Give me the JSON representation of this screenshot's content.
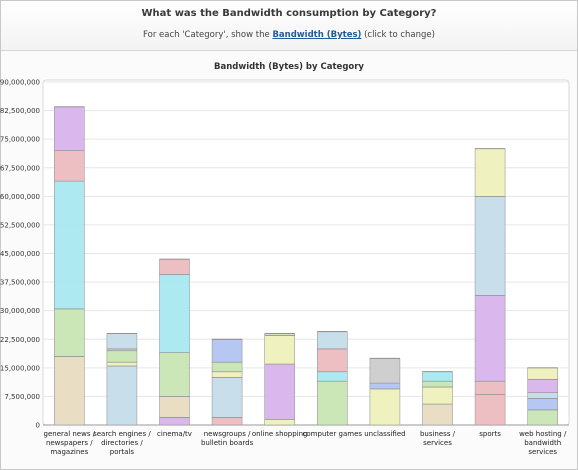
{
  "header": {
    "question": "What was the Bandwidth consumption by Category?",
    "sub_prefix": "For each 'Category', show the",
    "metric_label": "Bandwidth (Bytes)",
    "sub_suffix": "(click to change)"
  },
  "colors": {
    "tan": "#e8dcc0",
    "green": "#c8e6b4",
    "cyan": "#a9e8ef",
    "pink": "#ecbcc0",
    "lavender": "#d8b4ec",
    "lightblue": "#c6dcea",
    "lightyellow": "#eef0bc",
    "blue": "#b2c4f2",
    "gray": "#cccccc"
  },
  "chart_data": {
    "type": "bar",
    "stacked": true,
    "title": "Bandwidth (Bytes) by Category",
    "ylim": [
      0,
      90000000
    ],
    "yticks": [
      "0",
      "7,500,000",
      "15,000,000",
      "22,500,000",
      "30,000,000",
      "37,500,000",
      "45,000,000",
      "52,500,000",
      "60,000,000",
      "67,500,000",
      "75,000,000",
      "82,500,000",
      "90,000,000"
    ],
    "categories": [
      [
        "general news /",
        "newspapers /",
        "magazines"
      ],
      [
        "search engines /",
        "directories /",
        "portals"
      ],
      [
        "cinema/tv"
      ],
      [
        "newsgroups /",
        "bulletin boards"
      ],
      [
        "online shopping"
      ],
      [
        "computer games"
      ],
      [
        "unclassified"
      ],
      [
        "business /",
        "services"
      ],
      [
        "sports"
      ],
      [
        "web hosting /",
        "bandwidth",
        "services"
      ]
    ],
    "stacks": [
      [
        {
          "value": 18000000,
          "color": "tan"
        },
        {
          "value": 12500000,
          "color": "green"
        },
        {
          "value": 33500000,
          "color": "cyan"
        },
        {
          "value": 8000000,
          "color": "pink"
        },
        {
          "value": 11500000,
          "color": "lavender"
        }
      ],
      [
        {
          "value": 15500000,
          "color": "lightblue"
        },
        {
          "value": 1000000,
          "color": "lightyellow"
        },
        {
          "value": 3000000,
          "color": "green"
        },
        {
          "value": 500000,
          "color": "gray"
        },
        {
          "value": 4000000,
          "color": "lightblue"
        }
      ],
      [
        {
          "value": 2000000,
          "color": "lavender"
        },
        {
          "value": 5500000,
          "color": "tan"
        },
        {
          "value": 11500000,
          "color": "green"
        },
        {
          "value": 20500000,
          "color": "cyan"
        },
        {
          "value": 4000000,
          "color": "pink"
        }
      ],
      [
        {
          "value": 2000000,
          "color": "pink"
        },
        {
          "value": 10500000,
          "color": "lightblue"
        },
        {
          "value": 1500000,
          "color": "lightyellow"
        },
        {
          "value": 2500000,
          "color": "green"
        },
        {
          "value": 6000000,
          "color": "blue"
        }
      ],
      [
        {
          "value": 1500000,
          "color": "lightyellow"
        },
        {
          "value": 14500000,
          "color": "lavender"
        },
        {
          "value": 7500000,
          "color": "lightyellow"
        },
        {
          "value": 500000,
          "color": "green"
        }
      ],
      [
        {
          "value": 11500000,
          "color": "green"
        },
        {
          "value": 2500000,
          "color": "cyan"
        },
        {
          "value": 6000000,
          "color": "pink"
        },
        {
          "value": 4500000,
          "color": "lightblue"
        }
      ],
      [
        {
          "value": 9500000,
          "color": "lightyellow"
        },
        {
          "value": 1500000,
          "color": "blue"
        },
        {
          "value": 6500000,
          "color": "gray"
        }
      ],
      [
        {
          "value": 5500000,
          "color": "tan"
        },
        {
          "value": 4500000,
          "color": "lightyellow"
        },
        {
          "value": 1500000,
          "color": "green"
        },
        {
          "value": 2500000,
          "color": "cyan"
        }
      ],
      [
        {
          "value": 8000000,
          "color": "pink"
        },
        {
          "value": 3500000,
          "color": "pink"
        },
        {
          "value": 22500000,
          "color": "lavender"
        },
        {
          "value": 26000000,
          "color": "lightblue"
        },
        {
          "value": 12500000,
          "color": "lightyellow"
        }
      ],
      [
        {
          "value": 4000000,
          "color": "green"
        },
        {
          "value": 3000000,
          "color": "blue"
        },
        {
          "value": 1500000,
          "color": "lightblue"
        },
        {
          "value": 3500000,
          "color": "lavender"
        },
        {
          "value": 3000000,
          "color": "lightyellow"
        }
      ]
    ]
  }
}
